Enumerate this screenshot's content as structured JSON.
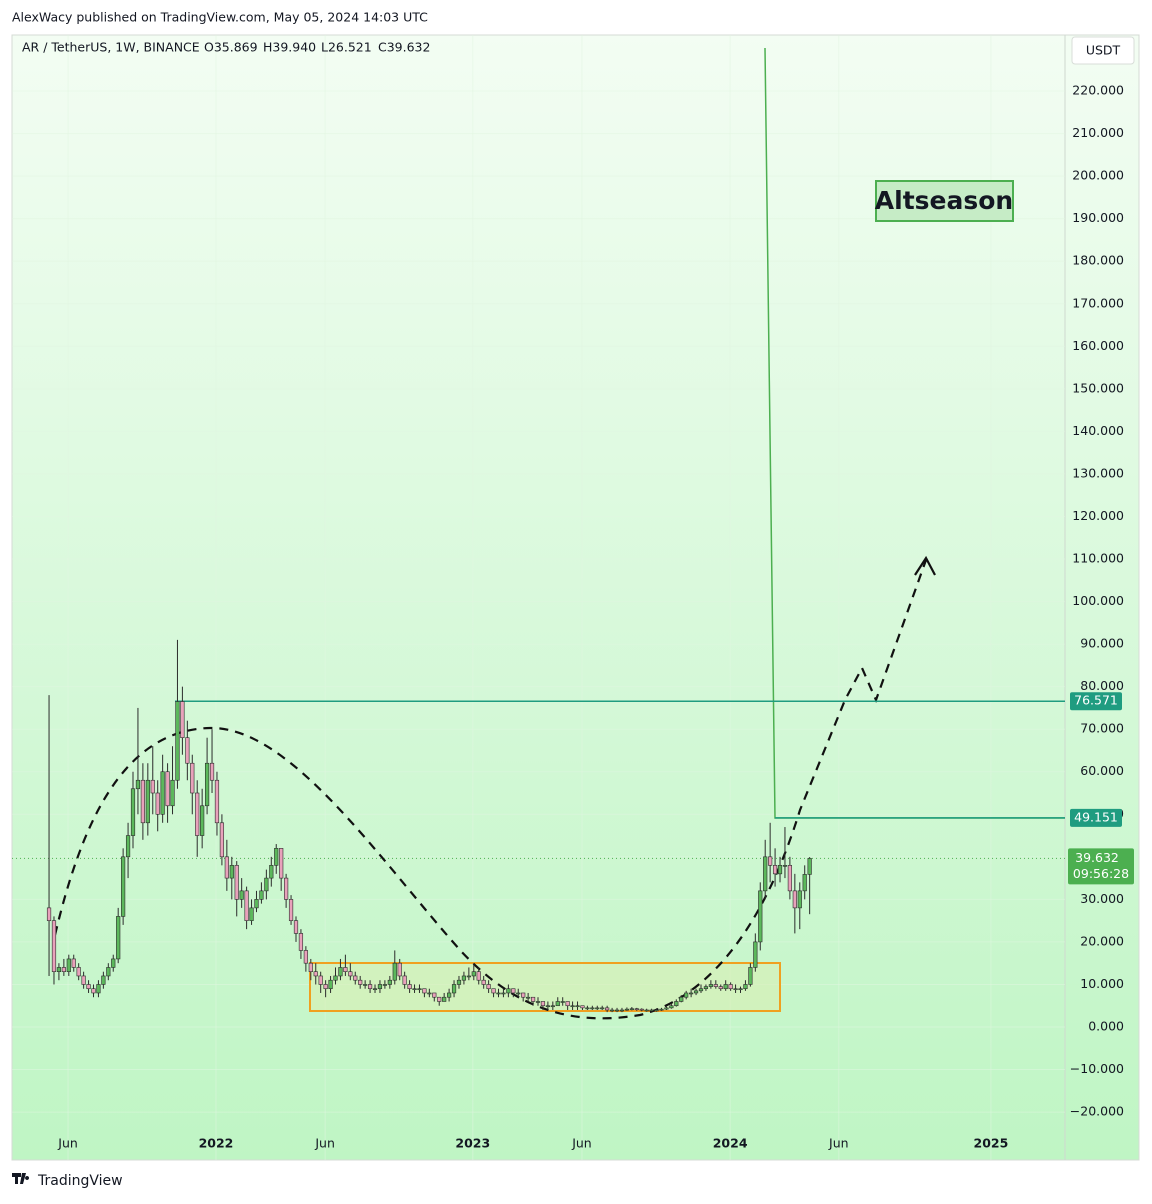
{
  "header": "AlexWacy published on TradingView.com, May 05, 2024 14:03 UTC",
  "footer": "TradingView",
  "chart_data": {
    "type": "candlestick",
    "title": "AR / TetherUS, 1W, BINANCE",
    "ohlc_text": [
      "O35.869",
      "H39.940",
      "L26.521",
      "C39.632"
    ],
    "currency": "USDT",
    "annotation": "Altseason",
    "up_color": "#5cb85c",
    "down_color": "#e8a2bb",
    "outline": "#2b2b2b",
    "ylim": [
      -31.26,
      233.17
    ],
    "yticks": [
      {
        "value": -20,
        "label": "−20.000"
      },
      {
        "value": -10,
        "label": "−10.000"
      },
      {
        "value": 0,
        "label": "0.000"
      },
      {
        "value": 10,
        "label": "10.000"
      },
      {
        "value": 20,
        "label": "20.000"
      },
      {
        "value": 30,
        "label": "30.000"
      },
      {
        "value": 40,
        "label": "40.000"
      },
      {
        "value": 50,
        "label": "50.000"
      },
      {
        "value": 60,
        "label": "60.000"
      },
      {
        "value": 70,
        "label": "70.000"
      },
      {
        "value": 80,
        "label": "80.000"
      },
      {
        "value": 90,
        "label": "90.000"
      },
      {
        "value": 100,
        "label": "100.000"
      },
      {
        "value": 110,
        "label": "110.000"
      },
      {
        "value": 120,
        "label": "120.000"
      },
      {
        "value": 130,
        "label": "130.000"
      },
      {
        "value": 140,
        "label": "140.000"
      },
      {
        "value": 150,
        "label": "150.000"
      },
      {
        "value": 160,
        "label": "160.000"
      },
      {
        "value": 170,
        "label": "170.000"
      },
      {
        "value": 180,
        "label": "180.000"
      },
      {
        "value": 190,
        "label": "190.000"
      },
      {
        "value": 200,
        "label": "200.000"
      },
      {
        "value": 210,
        "label": "210.000"
      },
      {
        "value": 220,
        "label": "220.000"
      }
    ],
    "xlim": [
      -7.5,
      205.7
    ],
    "xticks": [
      {
        "value": 3.85,
        "label": "Jun"
      },
      {
        "value": 33.8,
        "label": "2022"
      },
      {
        "value": 55.9,
        "label": "Jun"
      },
      {
        "value": 85.8,
        "label": "2023"
      },
      {
        "value": 107.9,
        "label": "Jun"
      },
      {
        "value": 137.9,
        "label": "2024"
      },
      {
        "value": 159.9,
        "label": "Jun"
      },
      {
        "value": 190.7,
        "label": "2025"
      }
    ],
    "levels": [
      76.571,
      49.151
    ],
    "last_price": 39.632,
    "countdown": "09:56:28",
    "candles": [
      [
        28,
        78,
        12,
        25
      ],
      [
        25,
        26,
        10,
        13
      ],
      [
        13,
        15,
        11,
        14
      ],
      [
        14,
        16,
        12,
        13
      ],
      [
        13,
        17,
        12,
        16
      ],
      [
        16,
        17,
        13,
        14
      ],
      [
        14,
        15,
        11,
        12
      ],
      [
        12,
        13,
        9,
        10
      ],
      [
        10,
        11,
        8,
        9
      ],
      [
        9,
        10,
        7,
        8
      ],
      [
        8,
        11,
        7,
        10
      ],
      [
        10,
        13,
        9,
        12
      ],
      [
        12,
        15,
        11,
        14
      ],
      [
        14,
        17,
        13,
        16
      ],
      [
        16,
        28,
        15,
        26
      ],
      [
        26,
        42,
        24,
        40
      ],
      [
        40,
        48,
        35,
        45
      ],
      [
        45,
        60,
        42,
        56
      ],
      [
        56,
        75,
        50,
        58
      ],
      [
        58,
        62,
        44,
        48
      ],
      [
        48,
        62,
        45,
        58
      ],
      [
        58,
        66,
        50,
        55
      ],
      [
        55,
        58,
        46,
        50
      ],
      [
        50,
        64,
        48,
        60
      ],
      [
        60,
        62,
        48,
        52
      ],
      [
        52,
        66,
        50,
        58
      ],
      [
        58,
        91,
        56,
        76.5
      ],
      [
        76.5,
        80,
        64,
        68
      ],
      [
        68,
        72,
        58,
        62
      ],
      [
        62,
        64,
        50,
        55
      ],
      [
        55,
        58,
        40,
        45
      ],
      [
        45,
        56,
        42,
        52
      ],
      [
        52,
        68,
        50,
        62
      ],
      [
        62,
        70,
        55,
        58
      ],
      [
        58,
        60,
        45,
        48
      ],
      [
        48,
        50,
        38,
        40
      ],
      [
        40,
        44,
        32,
        35
      ],
      [
        35,
        40,
        30,
        38
      ],
      [
        38,
        39,
        26,
        30
      ],
      [
        30,
        35,
        28,
        32
      ],
      [
        32,
        33,
        23,
        25
      ],
      [
        25,
        30,
        24,
        28
      ],
      [
        28,
        32,
        27,
        30
      ],
      [
        30,
        34,
        29,
        32
      ],
      [
        32,
        37,
        30,
        35
      ],
      [
        35,
        40,
        33,
        38
      ],
      [
        38,
        43,
        36,
        42
      ],
      [
        42,
        42,
        32,
        35
      ],
      [
        35,
        36,
        28,
        30
      ],
      [
        30,
        31,
        24,
        25
      ],
      [
        25,
        26,
        20,
        22
      ],
      [
        22,
        23,
        16,
        18
      ],
      [
        18,
        19,
        13,
        15
      ],
      [
        15,
        16,
        11,
        13
      ],
      [
        13,
        15,
        10,
        12
      ],
      [
        12,
        13,
        8,
        10
      ],
      [
        10,
        11,
        7,
        9
      ],
      [
        9,
        12,
        8,
        11
      ],
      [
        11,
        14,
        10,
        12
      ],
      [
        12,
        16,
        11,
        14
      ],
      [
        14,
        17,
        12,
        13
      ],
      [
        13,
        15,
        11,
        12
      ],
      [
        12,
        13,
        10,
        11
      ],
      [
        11,
        12,
        9,
        10
      ],
      [
        10,
        11,
        9,
        10
      ],
      [
        10,
        11,
        8,
        9
      ],
      [
        9,
        10,
        8,
        9
      ],
      [
        9,
        11,
        8,
        10
      ],
      [
        10,
        11,
        9,
        10
      ],
      [
        10,
        12,
        9,
        11
      ],
      [
        11,
        18,
        10,
        15
      ],
      [
        15,
        16,
        11,
        12
      ],
      [
        12,
        13,
        9,
        10
      ],
      [
        10,
        11,
        8,
        9
      ],
      [
        9,
        10,
        8,
        9
      ],
      [
        9,
        10,
        8,
        9
      ],
      [
        9,
        9,
        7,
        8
      ],
      [
        8,
        9,
        7,
        8
      ],
      [
        8,
        8,
        6,
        7
      ],
      [
        7,
        7,
        5,
        6
      ],
      [
        6,
        8,
        6,
        7
      ],
      [
        7,
        9,
        6,
        8
      ],
      [
        8,
        11,
        7,
        10
      ],
      [
        10,
        12,
        9,
        11
      ],
      [
        11,
        13,
        10,
        12
      ],
      [
        12,
        14,
        11,
        12
      ],
      [
        12,
        15,
        11,
        13
      ],
      [
        13,
        14,
        10,
        11
      ],
      [
        11,
        12,
        9,
        10
      ],
      [
        10,
        11,
        8,
        9
      ],
      [
        9,
        9,
        7,
        8
      ],
      [
        8,
        9,
        7,
        8
      ],
      [
        8,
        9,
        7,
        8
      ],
      [
        8,
        10,
        7,
        9
      ],
      [
        9,
        9,
        7,
        8
      ],
      [
        8,
        9,
        7,
        8
      ],
      [
        8,
        8,
        6,
        7
      ],
      [
        7,
        8,
        6,
        7
      ],
      [
        7,
        7,
        5,
        6
      ],
      [
        6,
        7,
        5,
        6
      ],
      [
        6,
        6,
        4,
        5
      ],
      [
        5,
        6,
        4,
        5
      ],
      [
        5,
        6,
        4,
        5
      ],
      [
        5,
        7,
        5,
        6
      ],
      [
        6,
        7,
        5,
        6
      ],
      [
        6,
        6,
        4,
        5
      ],
      [
        5,
        6,
        4,
        5
      ],
      [
        5,
        6,
        4,
        5
      ],
      [
        5,
        5,
        4,
        4.5
      ],
      [
        4.5,
        5,
        4,
        4.5
      ],
      [
        4.5,
        5,
        4,
        4.5
      ],
      [
        4.5,
        5,
        4,
        4.5
      ],
      [
        4.5,
        5,
        4,
        4.5
      ],
      [
        4.5,
        5,
        3.5,
        4
      ],
      [
        4,
        4.5,
        3.5,
        4
      ],
      [
        4,
        4.5,
        3.5,
        4
      ],
      [
        4,
        4.5,
        3.5,
        4
      ],
      [
        4,
        4.6,
        3.8,
        4.2
      ],
      [
        4.2,
        4.7,
        3.9,
        4.3
      ],
      [
        4.3,
        4.5,
        3.8,
        4.2
      ],
      [
        4.2,
        4.4,
        3.7,
        4
      ],
      [
        4,
        4.3,
        3.6,
        4
      ],
      [
        4,
        4.3,
        3.6,
        4
      ],
      [
        4,
        4.4,
        3.6,
        4
      ],
      [
        4,
        4.5,
        3.8,
        4.2
      ],
      [
        4.2,
        4.8,
        4,
        4.5
      ],
      [
        4.5,
        5.5,
        4.3,
        5
      ],
      [
        5,
        6.5,
        4.8,
        6
      ],
      [
        6,
        7.5,
        5.8,
        7
      ],
      [
        7,
        8.5,
        6.5,
        8
      ],
      [
        8,
        9,
        7,
        8
      ],
      [
        8,
        9,
        7.5,
        8.5
      ],
      [
        8.5,
        10,
        8,
        9
      ],
      [
        9,
        10,
        8.5,
        9.5
      ],
      [
        9.5,
        11,
        9,
        10
      ],
      [
        10,
        11,
        9,
        9.5
      ],
      [
        9.5,
        10,
        8.5,
        9
      ],
      [
        9,
        11,
        8.5,
        10
      ],
      [
        10,
        10.5,
        8.5,
        9
      ],
      [
        9,
        10,
        8,
        9
      ],
      [
        9,
        9.5,
        8,
        9
      ],
      [
        9,
        11,
        8.5,
        10
      ],
      [
        10,
        15,
        9.5,
        14
      ],
      [
        14,
        22,
        13,
        20
      ],
      [
        20,
        34,
        18,
        32
      ],
      [
        32,
        44,
        30,
        40
      ],
      [
        40,
        48,
        34,
        38
      ],
      [
        38,
        42,
        33,
        36
      ],
      [
        36,
        40,
        34,
        38
      ],
      [
        38,
        47,
        35,
        38
      ],
      [
        38,
        40,
        30,
        32
      ],
      [
        32,
        36,
        22,
        28
      ],
      [
        28,
        34,
        23,
        32
      ],
      [
        32,
        38,
        30,
        35.869
      ],
      [
        35.869,
        39.94,
        26.521,
        39.632
      ]
    ]
  }
}
